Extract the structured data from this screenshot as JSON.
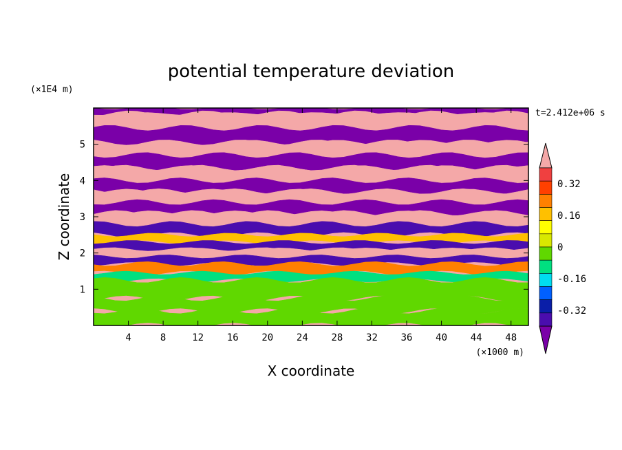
{
  "colors": {
    "levels_low_to_high": [
      "#7a00a8",
      "#4a0dae",
      "#0a1ea8",
      "#0060ff",
      "#00dcf0",
      "#00e080",
      "#60d800",
      "#d8e800",
      "#ffff00",
      "#ffc000",
      "#ff8000",
      "#ff4000",
      "#f04040",
      "#f4a8a8"
    ]
  },
  "chart_data": {
    "type": "heatmap",
    "title": "potential temperature deviation",
    "time_label": "t=2.412e+06 s",
    "xlabel": "X coordinate",
    "ylabel": "Z coordinate",
    "x_unit": "(×1000 m)",
    "y_unit": "(×1E4 m)",
    "xlim": [
      0,
      50
    ],
    "ylim": [
      0,
      6
    ],
    "x_ticks": [
      4,
      8,
      12,
      16,
      20,
      24,
      28,
      32,
      36,
      40,
      44,
      48
    ],
    "y_ticks": [
      1,
      2,
      3,
      4,
      5
    ],
    "x_tick_labels": [
      "4",
      "8",
      "12",
      "16",
      "20",
      "24",
      "28",
      "32",
      "36",
      "40",
      "44",
      "48"
    ],
    "y_tick_labels": [
      "1",
      "2",
      "3",
      "4",
      "5"
    ],
    "colorbar": {
      "levels": [
        -0.4,
        -0.32,
        -0.24,
        -0.16,
        -0.08,
        0,
        0.08,
        0.16,
        0.24,
        0.32,
        0.4
      ],
      "labels": [
        "0.32",
        "0.16",
        "0",
        "-0.16",
        "-0.32"
      ],
      "extend": "both"
    },
    "layers": [
      {
        "z": [
          5.85,
          6.0
        ],
        "value": -0.45
      },
      {
        "z": [
          5.45,
          5.85
        ],
        "value": 0.45
      },
      {
        "z": [
          5.05,
          5.45
        ],
        "value": -0.45
      },
      {
        "z": [
          4.7,
          5.05
        ],
        "value": 0.45
      },
      {
        "z": [
          4.35,
          4.7
        ],
        "value": -0.45
      },
      {
        "z": [
          4.0,
          4.35
        ],
        "value": 0.45
      },
      {
        "z": [
          3.7,
          4.0
        ],
        "value": -0.45
      },
      {
        "z": [
          3.4,
          3.7
        ],
        "value": 0.45
      },
      {
        "z": [
          3.1,
          3.4
        ],
        "value": -0.45
      },
      {
        "z": [
          2.8,
          3.1
        ],
        "value": 0.45
      },
      {
        "z": [
          2.5,
          2.8
        ],
        "value": -0.35
      },
      {
        "z": [
          2.3,
          2.5
        ],
        "value": 0.3
      },
      {
        "z": [
          2.1,
          2.3
        ],
        "value": -0.35
      },
      {
        "z": [
          1.9,
          2.1
        ],
        "value": 0.45
      },
      {
        "z": [
          1.7,
          1.9
        ],
        "value": -0.35
      },
      {
        "z": [
          1.45,
          1.7
        ],
        "value": 0.35
      },
      {
        "z": [
          1.25,
          1.45
        ],
        "value": -0.05
      },
      {
        "z": [
          0.75,
          1.25
        ],
        "value": 0.0
      },
      {
        "z": [
          0.4,
          0.75
        ],
        "value": 0.04
      },
      {
        "z": [
          0.0,
          0.4
        ],
        "value": 0.06
      }
    ]
  }
}
